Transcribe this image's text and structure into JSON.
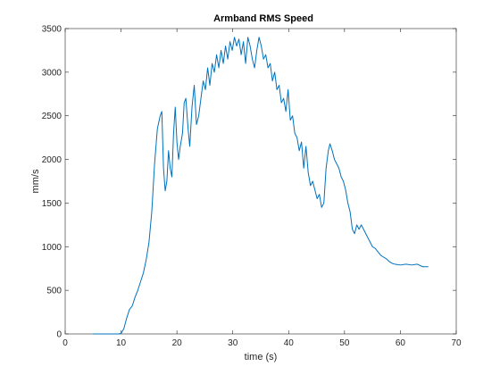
{
  "chart_data": {
    "type": "line",
    "title": "Armband RMS Speed",
    "xlabel": "time (s)",
    "ylabel": "mm/s",
    "xlim": [
      0,
      70
    ],
    "ylim": [
      0,
      3500
    ],
    "x_ticks": [
      0,
      10,
      20,
      30,
      40,
      50,
      60,
      70
    ],
    "y_ticks": [
      0,
      500,
      1000,
      1500,
      2000,
      2500,
      3000,
      3500
    ],
    "grid": false,
    "box": true,
    "series": [
      {
        "color": "#0072bd",
        "points": [
          [
            5,
            0
          ],
          [
            9.5,
            0
          ],
          [
            10,
            5
          ],
          [
            10.5,
            60
          ],
          [
            11,
            180
          ],
          [
            11.5,
            280
          ],
          [
            12,
            320
          ],
          [
            12.5,
            420
          ],
          [
            13,
            500
          ],
          [
            13.5,
            600
          ],
          [
            14,
            700
          ],
          [
            14.5,
            850
          ],
          [
            15,
            1050
          ],
          [
            15.5,
            1400
          ],
          [
            16,
            1950
          ],
          [
            16.5,
            2350
          ],
          [
            17,
            2500
          ],
          [
            17.3,
            2550
          ],
          [
            17.6,
            1900
          ],
          [
            17.9,
            1640
          ],
          [
            18.2,
            1750
          ],
          [
            18.5,
            2100
          ],
          [
            18.8,
            1900
          ],
          [
            19.1,
            1800
          ],
          [
            19.4,
            2300
          ],
          [
            19.7,
            2600
          ],
          [
            20,
            2200
          ],
          [
            20.3,
            2000
          ],
          [
            20.6,
            2150
          ],
          [
            21,
            2300
          ],
          [
            21.3,
            2650
          ],
          [
            21.6,
            2700
          ],
          [
            22,
            2350
          ],
          [
            22.3,
            2150
          ],
          [
            22.7,
            2600
          ],
          [
            23.1,
            2850
          ],
          [
            23.5,
            2400
          ],
          [
            23.9,
            2500
          ],
          [
            24.3,
            2700
          ],
          [
            24.7,
            2900
          ],
          [
            25.1,
            2800
          ],
          [
            25.5,
            3050
          ],
          [
            25.9,
            2850
          ],
          [
            26.3,
            3100
          ],
          [
            26.7,
            3000
          ],
          [
            27.1,
            3200
          ],
          [
            27.5,
            3050
          ],
          [
            27.9,
            3250
          ],
          [
            28.3,
            3100
          ],
          [
            28.7,
            3300
          ],
          [
            29.1,
            3150
          ],
          [
            29.5,
            3350
          ],
          [
            29.9,
            3250
          ],
          [
            30.3,
            3400
          ],
          [
            30.7,
            3300
          ],
          [
            31.1,
            3380
          ],
          [
            31.5,
            3200
          ],
          [
            31.9,
            3350
          ],
          [
            32.3,
            3100
          ],
          [
            32.7,
            3400
          ],
          [
            33.1,
            3300
          ],
          [
            33.5,
            3150
          ],
          [
            33.9,
            3050
          ],
          [
            34.3,
            3250
          ],
          [
            34.7,
            3400
          ],
          [
            35.1,
            3300
          ],
          [
            35.5,
            3150
          ],
          [
            35.9,
            3200
          ],
          [
            36.3,
            3050
          ],
          [
            36.7,
            3100
          ],
          [
            37.1,
            2900
          ],
          [
            37.5,
            3000
          ],
          [
            37.9,
            2800
          ],
          [
            38.3,
            2850
          ],
          [
            38.7,
            2650
          ],
          [
            39.1,
            2700
          ],
          [
            39.5,
            2550
          ],
          [
            39.9,
            2800
          ],
          [
            40.3,
            2450
          ],
          [
            40.7,
            2500
          ],
          [
            41.1,
            2300
          ],
          [
            41.5,
            2250
          ],
          [
            41.9,
            2100
          ],
          [
            42.3,
            2200
          ],
          [
            42.7,
            1900
          ],
          [
            43.1,
            2150
          ],
          [
            43.5,
            1850
          ],
          [
            43.9,
            1700
          ],
          [
            44.3,
            1750
          ],
          [
            44.7,
            1650
          ],
          [
            45.1,
            1550
          ],
          [
            45.5,
            1600
          ],
          [
            45.9,
            1450
          ],
          [
            46.3,
            1500
          ],
          [
            46.7,
            1900
          ],
          [
            47.1,
            2100
          ],
          [
            47.4,
            2180
          ],
          [
            47.8,
            2100
          ],
          [
            48.2,
            2000
          ],
          [
            48.6,
            1950
          ],
          [
            49,
            1900
          ],
          [
            49.4,
            1800
          ],
          [
            49.8,
            1750
          ],
          [
            50.2,
            1650
          ],
          [
            50.6,
            1500
          ],
          [
            51,
            1400
          ],
          [
            51.4,
            1200
          ],
          [
            51.8,
            1150
          ],
          [
            52.2,
            1250
          ],
          [
            52.6,
            1200
          ],
          [
            53,
            1250
          ],
          [
            53.4,
            1200
          ],
          [
            53.8,
            1150
          ],
          [
            54.2,
            1100
          ],
          [
            54.6,
            1050
          ],
          [
            55,
            1000
          ],
          [
            55.5,
            980
          ],
          [
            56,
            940
          ],
          [
            56.5,
            900
          ],
          [
            57,
            880
          ],
          [
            57.5,
            860
          ],
          [
            58,
            830
          ],
          [
            58.5,
            810
          ],
          [
            59,
            800
          ],
          [
            60,
            790
          ],
          [
            61,
            800
          ],
          [
            62,
            790
          ],
          [
            63,
            800
          ],
          [
            64,
            770
          ],
          [
            65,
            770
          ]
        ]
      }
    ]
  }
}
